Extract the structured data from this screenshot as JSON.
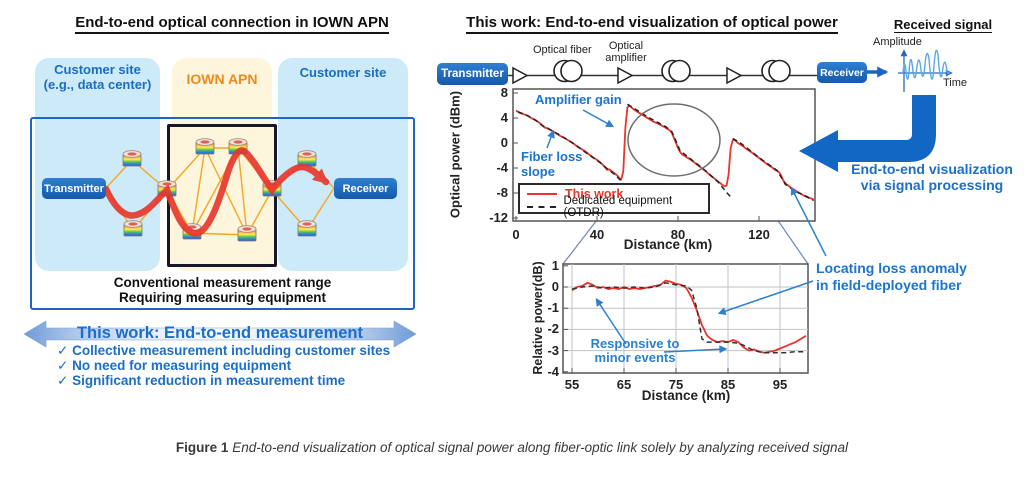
{
  "figure": {
    "caption_prefix": "Figure 1",
    "caption_text": "End-to-end visualization of optical signal power along fiber-optic link solely by analyzing received signal"
  },
  "colors": {
    "accent_blue": "#1b6ec9",
    "orange": "#f08a1a",
    "red": "#e8352b",
    "device_blue": "#1d6bc0",
    "light_blue_fill": "#cdeaf9",
    "cream_fill": "#fdf5dc"
  },
  "left_panel": {
    "title": "End-to-end optical connection in IOWN APN",
    "columns": [
      {
        "label_line1": "Customer site",
        "label_line2": "(e.g., data center)"
      },
      {
        "label": "IOWN APN"
      },
      {
        "label": "Customer site"
      }
    ],
    "transmitter_label": "Transmitter",
    "receiver_label": "Receiver",
    "range_note_line1": "Conventional measurement range",
    "range_note_line2": "Requiring measuring equipment",
    "banner": "This work: End-to-end measurement",
    "check_glyph": "✓",
    "checklist": [
      "Collective measurement including customer sites",
      "No need for measuring equipment",
      "Significant reduction in measurement time"
    ]
  },
  "right_panel": {
    "title": "This work: End-to-end visualization of optical power",
    "chain": {
      "transmitter_label": "Transmitter",
      "receiver_label": "Receiver",
      "fiber_label": "Optical fiber",
      "amplifier_label_line1": "Optical",
      "amplifier_label_line2": "amplifier"
    },
    "received_signal": {
      "title": "Received signal",
      "y_label": "Amplitude",
      "x_label": "Time"
    },
    "processing_note_line1": "End-to-end visualization",
    "processing_note_line2": "via signal processing",
    "annotations": {
      "amplifier_gain": "Amplifier gain",
      "fiber_loss_line1": "Fiber loss",
      "fiber_loss_line2": "slope",
      "locating_line1": "Locating loss anomaly",
      "locating_line2": "in field-deployed fiber",
      "responsive_line1": "Responsive to",
      "responsive_line2": "minor events"
    }
  },
  "chart_data": [
    {
      "id": "main-power-chart",
      "type": "line",
      "xlabel": "Distance (km)",
      "ylabel": "Optical power (dBm)",
      "xlim": [
        0,
        148
      ],
      "ylim": [
        -12,
        8
      ],
      "x_ticks": [
        0,
        40,
        80,
        120
      ],
      "y_ticks": [
        8,
        4,
        0,
        -4,
        -8,
        -12
      ],
      "grid": false,
      "legend_position": "lower-left",
      "series": [
        {
          "name": "This work",
          "color": "#e8352b",
          "style": "solid",
          "points": [
            [
              0,
              5.2
            ],
            [
              2,
              4.8
            ],
            [
              4,
              4.6
            ],
            [
              6,
              4.3
            ],
            [
              8,
              3.9
            ],
            [
              10,
              3.6
            ],
            [
              12,
              3.1
            ],
            [
              14,
              2.5
            ],
            [
              16,
              2.3
            ],
            [
              18,
              1.9
            ],
            [
              20,
              1.5
            ],
            [
              22,
              1.1
            ],
            [
              24,
              0.8
            ],
            [
              26,
              0.4
            ],
            [
              28,
              0.0
            ],
            [
              30,
              -0.5
            ],
            [
              32,
              -0.9
            ],
            [
              34,
              -1.3
            ],
            [
              36,
              -1.8
            ],
            [
              38,
              -2.3
            ],
            [
              40,
              -2.7
            ],
            [
              42,
              -3.2
            ],
            [
              44,
              -3.9
            ],
            [
              45,
              -4.3
            ],
            [
              46,
              -4.2
            ],
            [
              48,
              -4.7
            ],
            [
              50,
              -5.2
            ],
            [
              51,
              -5.6
            ],
            [
              52,
              -5.8
            ],
            [
              53,
              -4.5
            ],
            [
              54,
              2.5
            ],
            [
              55,
              5.7
            ],
            [
              56,
              6.0
            ],
            [
              57,
              5.7
            ],
            [
              58,
              5.4
            ],
            [
              60,
              5.0
            ],
            [
              62,
              4.6
            ],
            [
              64,
              4.2
            ],
            [
              66,
              3.8
            ],
            [
              68,
              3.4
            ],
            [
              70,
              3.1
            ],
            [
              72,
              2.8
            ],
            [
              74,
              2.4
            ],
            [
              76,
              2.0
            ],
            [
              77,
              1.6
            ],
            [
              78,
              0.8
            ],
            [
              79,
              0.0
            ],
            [
              80,
              -0.8
            ],
            [
              81,
              -1.4
            ],
            [
              82,
              -1.8
            ],
            [
              84,
              -2.2
            ],
            [
              86,
              -2.6
            ],
            [
              88,
              -3.1
            ],
            [
              90,
              -3.6
            ],
            [
              92,
              -4.1
            ],
            [
              94,
              -4.6
            ],
            [
              96,
              -5.2
            ],
            [
              98,
              -5.7
            ],
            [
              100,
              -6.2
            ],
            [
              102,
              -6.7
            ],
            [
              103,
              -6.9
            ],
            [
              104,
              -6.8
            ],
            [
              105,
              -5.0
            ],
            [
              106,
              -0.8
            ],
            [
              107,
              0.4
            ],
            [
              108,
              0.5
            ],
            [
              109,
              0.2
            ],
            [
              110,
              -0.1
            ],
            [
              112,
              -0.5
            ],
            [
              114,
              -1.0
            ],
            [
              116,
              -1.4
            ],
            [
              118,
              -1.9
            ],
            [
              120,
              -2.4
            ],
            [
              122,
              -2.9
            ],
            [
              124,
              -3.4
            ],
            [
              126,
              -3.8
            ],
            [
              128,
              -4.3
            ],
            [
              130,
              -4.7
            ],
            [
              131,
              -5.3
            ],
            [
              132,
              -6.0
            ],
            [
              133,
              -6.4
            ],
            [
              134,
              -6.7
            ],
            [
              136,
              -7.2
            ],
            [
              138,
              -7.6
            ],
            [
              140,
              -8.0
            ],
            [
              142,
              -8.4
            ],
            [
              144,
              -8.7
            ],
            [
              146,
              -8.9
            ],
            [
              147,
              -9.0
            ]
          ]
        },
        {
          "name": "Dedicated equipment (OTDR)",
          "color": "#222222",
          "style": "dashed",
          "segments": [
            [
              [
                1,
                5.0
              ],
              [
                5,
                4.5
              ],
              [
                9,
                3.8
              ],
              [
                13,
                2.8
              ],
              [
                17,
                2.1
              ],
              [
                21,
                1.4
              ],
              [
                25,
                0.6
              ],
              [
                29,
                -0.2
              ],
              [
                33,
                -1.2
              ],
              [
                37,
                -2.1
              ],
              [
                41,
                -3.0
              ],
              [
                45,
                -4.1
              ],
              [
                49,
                -5.1
              ],
              [
                52,
                -6.1
              ],
              [
                54,
                -7.0
              ],
              [
                56,
                -7.8
              ]
            ],
            [
              [
                55,
                6.2
              ],
              [
                58,
                5.6
              ],
              [
                62,
                4.8
              ],
              [
                66,
                4.0
              ],
              [
                70,
                3.3
              ],
              [
                74,
                2.6
              ],
              [
                77,
                1.8
              ],
              [
                79,
                0.3
              ],
              [
                81,
                -1.2
              ],
              [
                84,
                -2.0
              ],
              [
                88,
                -3.0
              ],
              [
                92,
                -4.0
              ],
              [
                96,
                -5.1
              ],
              [
                100,
                -6.3
              ],
              [
                102,
                -7.1
              ],
              [
                104,
                -7.9
              ],
              [
                106,
                -8.6
              ]
            ],
            [
              [
                107,
                0.7
              ],
              [
                110,
                0.2
              ],
              [
                114,
                -0.8
              ],
              [
                118,
                -1.8
              ],
              [
                122,
                -2.8
              ],
              [
                126,
                -3.7
              ],
              [
                129,
                -4.4
              ],
              [
                131,
                -5.5
              ],
              [
                133,
                -6.6
              ],
              [
                136,
                -7.3
              ],
              [
                139,
                -7.9
              ],
              [
                142,
                -8.3
              ],
              [
                145,
                -8.8
              ],
              [
                147,
                -9.2
              ]
            ]
          ]
        }
      ]
    },
    {
      "id": "inset-relative-chart",
      "type": "line",
      "xlabel": "Distance (km)",
      "ylabel": "Relative power(dB)",
      "xlim": [
        55,
        100
      ],
      "ylim": [
        -4,
        1
      ],
      "x_ticks": [
        55,
        65,
        75,
        85,
        95
      ],
      "y_ticks": [
        1,
        0,
        -1,
        -2,
        -3,
        -4
      ],
      "grid": true,
      "series": [
        {
          "name": "This work",
          "color": "#e8352b",
          "style": "solid",
          "points": [
            [
              55,
              -0.15
            ],
            [
              56,
              0.0
            ],
            [
              57,
              0.05
            ],
            [
              58,
              0.2
            ],
            [
              59,
              0.1
            ],
            [
              60,
              -0.05
            ],
            [
              61,
              0.0
            ],
            [
              62,
              -0.1
            ],
            [
              63,
              -0.05
            ],
            [
              64,
              -0.1
            ],
            [
              65,
              0.0
            ],
            [
              66,
              -0.1
            ],
            [
              67,
              -0.05
            ],
            [
              68,
              -0.1
            ],
            [
              69,
              -0.05
            ],
            [
              70,
              0.0
            ],
            [
              71,
              0.05
            ],
            [
              72,
              0.1
            ],
            [
              73,
              0.3
            ],
            [
              74,
              0.25
            ],
            [
              75,
              0.15
            ],
            [
              76,
              0.1
            ],
            [
              77,
              -0.05
            ],
            [
              78,
              -0.5
            ],
            [
              79,
              -1.1
            ],
            [
              80,
              -1.8
            ],
            [
              81,
              -2.3
            ],
            [
              82,
              -2.5
            ],
            [
              83,
              -2.6
            ],
            [
              84,
              -2.55
            ],
            [
              85,
              -2.6
            ],
            [
              86,
              -2.5
            ],
            [
              87,
              -2.6
            ],
            [
              88,
              -2.85
            ],
            [
              89,
              -3.0
            ],
            [
              90,
              -2.95
            ],
            [
              91,
              -3.05
            ],
            [
              92,
              -3.1
            ],
            [
              93,
              -3.05
            ],
            [
              94,
              -3.0
            ],
            [
              95,
              -2.9
            ],
            [
              96,
              -2.8
            ],
            [
              97,
              -2.7
            ],
            [
              98,
              -2.6
            ],
            [
              99,
              -2.45
            ],
            [
              100,
              -2.3
            ]
          ]
        },
        {
          "name": "Dedicated equipment (OTDR)",
          "color": "#333333",
          "style": "dashed",
          "points": [
            [
              55,
              -0.1
            ],
            [
              57,
              0.0
            ],
            [
              59,
              0.05
            ],
            [
              61,
              -0.05
            ],
            [
              63,
              0.0
            ],
            [
              65,
              -0.05
            ],
            [
              67,
              0.0
            ],
            [
              69,
              -0.05
            ],
            [
              71,
              0.0
            ],
            [
              73,
              0.2
            ],
            [
              75,
              0.1
            ],
            [
              77,
              0.05
            ],
            [
              78,
              -0.15
            ],
            [
              79,
              -1.0
            ],
            [
              80,
              -2.45
            ],
            [
              81,
              -2.6
            ],
            [
              83,
              -2.6
            ],
            [
              85,
              -2.6
            ],
            [
              87,
              -2.65
            ],
            [
              88,
              -2.75
            ],
            [
              90,
              -3.0
            ],
            [
              92,
              -3.1
            ],
            [
              94,
              -3.1
            ],
            [
              96,
              -3.1
            ],
            [
              98,
              -3.05
            ],
            [
              100,
              -3.05
            ]
          ]
        }
      ]
    }
  ]
}
